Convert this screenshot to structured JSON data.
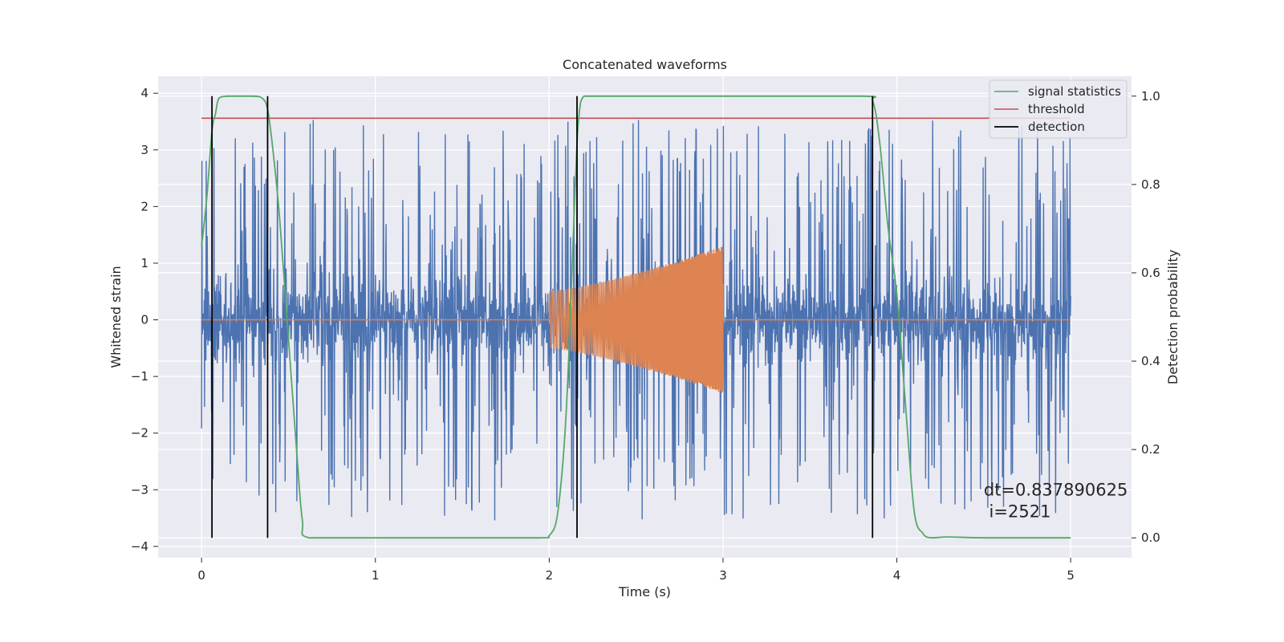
{
  "chart_data": {
    "type": "line",
    "title": "Concatenated waveforms",
    "xlabel": "Time (s)",
    "ylabel": "Whitened strain",
    "ylabel_right": "Detection probability",
    "xlim": [
      -0.25,
      5.35
    ],
    "ylim": [
      -4.2,
      4.3
    ],
    "ylim_right": [
      -0.045,
      1.045
    ],
    "x_ticks": [
      0,
      1,
      2,
      3,
      4,
      5
    ],
    "x_tick_labels": [
      "0",
      "1",
      "2",
      "3",
      "4",
      "5"
    ],
    "y_ticks": [
      4,
      3,
      2,
      1,
      0,
      -1,
      -2,
      -3,
      -4
    ],
    "y_tick_labels": [
      "4",
      "3",
      "2",
      "1",
      "0",
      "−1",
      "−2",
      "−3",
      "−4"
    ],
    "y_right_ticks": [
      1.0,
      0.8,
      0.6,
      0.4,
      0.2,
      0.0
    ],
    "y_right_tick_labels": [
      "1.0",
      "0.8",
      "0.6",
      "0.4",
      "0.2",
      "0.0"
    ],
    "grid": true,
    "legend_placement": "top-right",
    "series": [
      {
        "name": "",
        "kind": "noise",
        "axis": "left",
        "color": "#4c72b0",
        "x_range": [
          0,
          5
        ],
        "core_amplitude": 0.75,
        "peak_amplitude": 3.75
      },
      {
        "name": "",
        "kind": "chirp",
        "axis": "left",
        "color": "#dd8452",
        "x_range": [
          0,
          5
        ],
        "chirp_x_range": [
          2.0,
          3.0
        ],
        "amplitude_start": 0.5,
        "amplitude_end": 1.3
      },
      {
        "name": "signal statistics",
        "axis": "right",
        "color": "#55a868",
        "x": [
          0.0,
          0.03,
          0.06,
          0.08,
          0.1,
          0.15,
          0.2,
          0.3,
          0.35,
          0.38,
          0.41,
          0.45,
          0.5,
          0.55,
          0.58,
          0.62,
          1.0,
          1.5,
          1.95,
          2.0,
          2.05,
          2.1,
          2.15,
          2.17,
          2.2,
          2.3,
          3.0,
          3.8,
          3.86,
          3.9,
          3.95,
          4.0,
          4.05,
          4.1,
          4.15,
          4.2,
          4.3,
          4.5,
          5.0
        ],
        "y": [
          0.66,
          0.77,
          0.92,
          0.96,
          0.995,
          1.0,
          1.0,
          1.0,
          0.995,
          0.97,
          0.88,
          0.72,
          0.45,
          0.18,
          0.04,
          0.0,
          0.0,
          0.0,
          0.0,
          0.005,
          0.06,
          0.3,
          0.8,
          0.95,
          1.0,
          1.0,
          1.0,
          1.0,
          0.99,
          0.9,
          0.7,
          0.55,
          0.3,
          0.06,
          0.01,
          0.0,
          0.002,
          0.0,
          0.0
        ]
      },
      {
        "name": "threshold",
        "axis": "right",
        "color": "#c44e52",
        "x": [
          0,
          5
        ],
        "y": [
          0.95,
          0.95
        ]
      },
      {
        "name": "detection",
        "axis": "right",
        "color": "#000000",
        "kind": "vlines",
        "x": [
          0.06,
          0.38,
          2.16,
          3.86
        ],
        "ymin": 0.0,
        "ymax": 1.0
      }
    ],
    "annotation": {
      "line1": "dt=0.837890625",
      "line2": " i=2521",
      "x": 4.5,
      "y": -3.0
    }
  }
}
